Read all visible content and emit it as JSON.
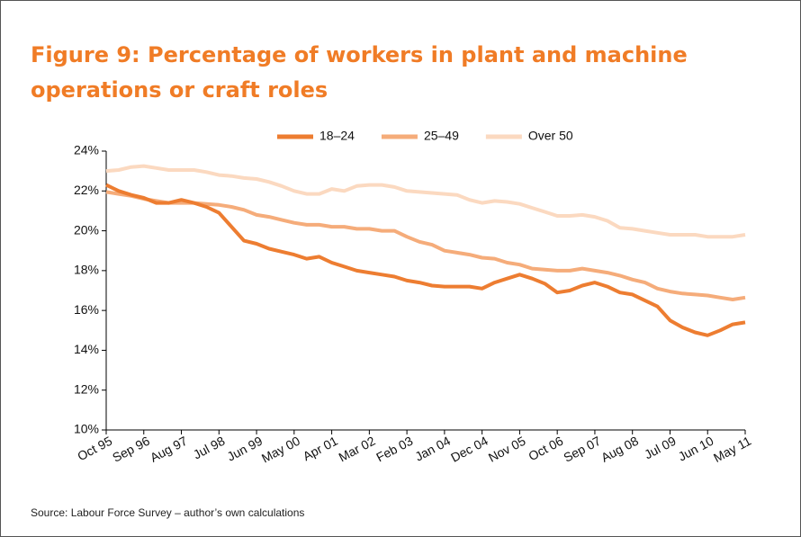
{
  "chart_data": {
    "type": "line",
    "title": "Figure 9: Percentage of workers in plant and machine operations or craft roles",
    "source": "Source: Labour Force Survey – author’s own calculations",
    "categories": [
      "Oct 95",
      null,
      null,
      "Sep 96",
      null,
      null,
      "Aug 97",
      null,
      null,
      "Jul 98",
      null,
      null,
      "Jun 99",
      null,
      null,
      "May 00",
      null,
      null,
      "Apr 01",
      null,
      null,
      "Mar 02",
      null,
      null,
      "Feb 03",
      null,
      null,
      "Jan 04",
      null,
      null,
      "Dec 04",
      null,
      null,
      "Nov 05",
      null,
      null,
      "Oct 06",
      null,
      null,
      "Sep 07",
      null,
      null,
      "Aug 08",
      null,
      null,
      "Jul 09",
      null,
      null,
      "Jun 10",
      null,
      null,
      "May 11"
    ],
    "series": [
      {
        "name": "18–24",
        "color": "#ed7d31",
        "values": [
          22.3,
          22.0,
          21.8,
          21.65,
          21.4,
          21.4,
          21.55,
          21.4,
          21.2,
          20.9,
          20.2,
          19.5,
          19.35,
          19.1,
          18.95,
          18.8,
          18.6,
          18.7,
          18.4,
          18.2,
          18.0,
          17.9,
          17.8,
          17.7,
          17.5,
          17.4,
          17.25,
          17.2,
          17.2,
          17.2,
          17.1,
          17.4,
          17.6,
          17.8,
          17.6,
          17.35,
          16.9,
          17.0,
          17.25,
          17.4,
          17.2,
          16.9,
          16.8,
          16.5,
          16.2,
          15.5,
          15.15,
          14.9,
          14.75,
          15.0,
          15.3,
          15.4
        ]
      },
      {
        "name": "25–49",
        "color": "#f5ac7a",
        "values": [
          21.95,
          21.85,
          21.75,
          21.6,
          21.5,
          21.4,
          21.4,
          21.4,
          21.35,
          21.3,
          21.2,
          21.05,
          20.8,
          20.7,
          20.55,
          20.4,
          20.3,
          20.3,
          20.2,
          20.2,
          20.1,
          20.1,
          20.0,
          20.0,
          19.7,
          19.45,
          19.3,
          19.0,
          18.9,
          18.8,
          18.65,
          18.6,
          18.4,
          18.3,
          18.1,
          18.05,
          18.0,
          18.0,
          18.1,
          18.0,
          17.9,
          17.75,
          17.55,
          17.4,
          17.1,
          16.95,
          16.85,
          16.8,
          16.75,
          16.65,
          16.55,
          16.65
        ]
      },
      {
        "name": "Over 50",
        "color": "#fbd9c0",
        "values": [
          23.0,
          23.05,
          23.2,
          23.25,
          23.15,
          23.05,
          23.05,
          23.05,
          22.95,
          22.8,
          22.75,
          22.65,
          22.6,
          22.45,
          22.25,
          22.0,
          21.85,
          21.85,
          22.1,
          22.0,
          22.25,
          22.3,
          22.3,
          22.2,
          22.0,
          21.95,
          21.9,
          21.85,
          21.8,
          21.55,
          21.4,
          21.5,
          21.45,
          21.35,
          21.15,
          20.95,
          20.75,
          20.75,
          20.8,
          20.7,
          20.5,
          20.15,
          20.1,
          20.0,
          19.9,
          19.8,
          19.8,
          19.8,
          19.7,
          19.7,
          19.7,
          19.8
        ]
      }
    ],
    "ylim": [
      10,
      24
    ],
    "yticks": [
      {
        "value": 10,
        "label": "10%"
      },
      {
        "value": 12,
        "label": "12%"
      },
      {
        "value": 14,
        "label": "14%"
      },
      {
        "value": 16,
        "label": "16%"
      },
      {
        "value": 18,
        "label": "18%"
      },
      {
        "value": 20,
        "label": "20%"
      },
      {
        "value": 22,
        "label": "22%"
      },
      {
        "value": 24,
        "label": "24%"
      }
    ],
    "grid": false,
    "legend": "top"
  }
}
